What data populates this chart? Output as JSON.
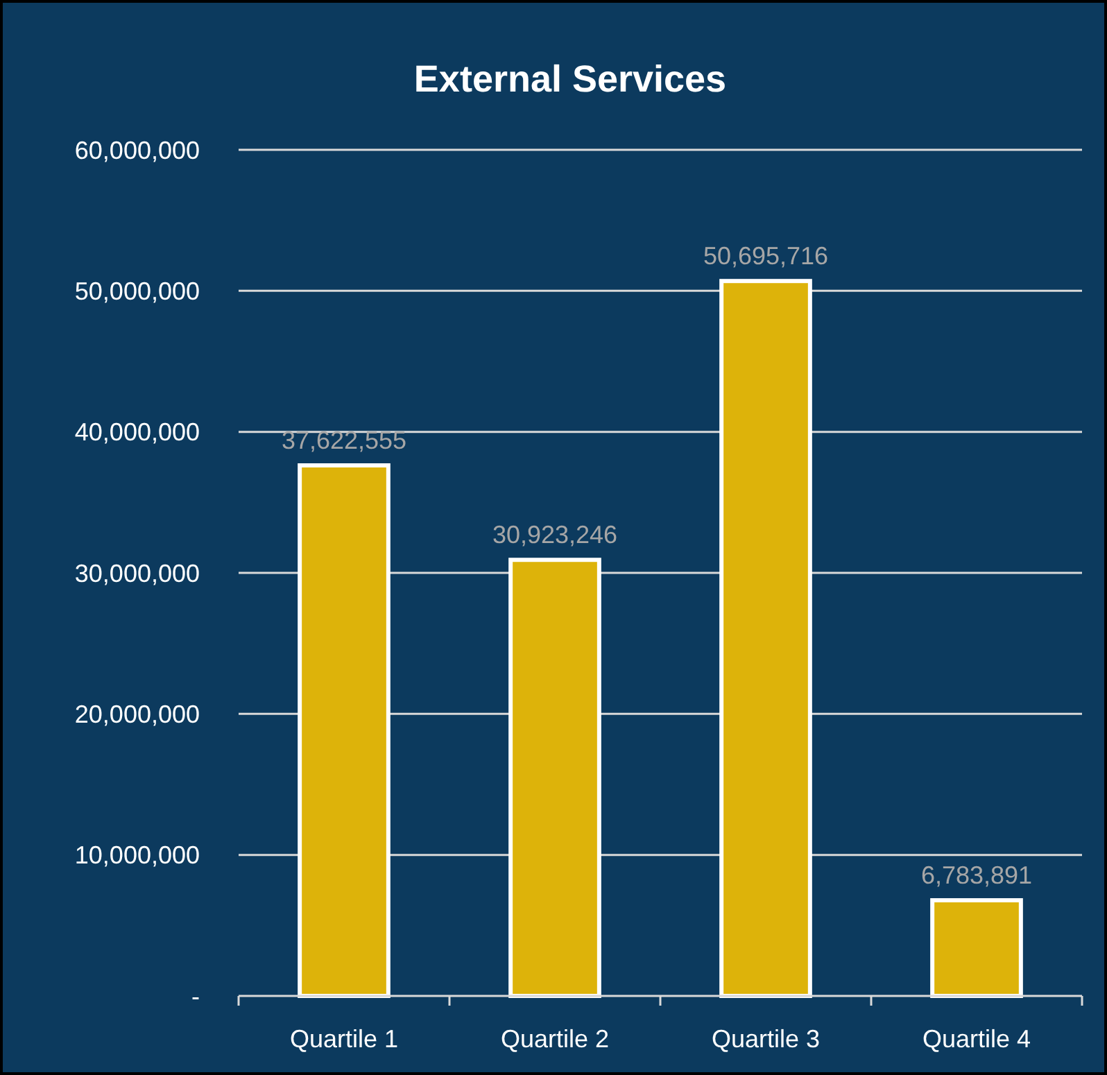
{
  "chart_data": {
    "type": "bar",
    "title": "External Services",
    "categories": [
      "Quartile 1",
      "Quartile 2",
      "Quartile 3",
      "Quartile 4"
    ],
    "values": [
      37622555,
      30923246,
      50695716,
      6783891
    ],
    "color": "#ddb30a",
    "ylim": [
      0,
      60000000
    ],
    "yticks": [
      {
        "value": 0,
        "label": "-"
      },
      {
        "value": 10000000,
        "label": "10,000,000"
      },
      {
        "value": 20000000,
        "label": "20,000,000"
      },
      {
        "value": 30000000,
        "label": "30,000,000"
      },
      {
        "value": 40000000,
        "label": "40,000,000"
      },
      {
        "value": 50000000,
        "label": "50,000,000"
      },
      {
        "value": 60000000,
        "label": "60,000,000"
      }
    ],
    "value_labels": [
      "37,622,555",
      "30,923,246",
      "50,695,716",
      "6,783,891"
    ],
    "grid": "y"
  }
}
